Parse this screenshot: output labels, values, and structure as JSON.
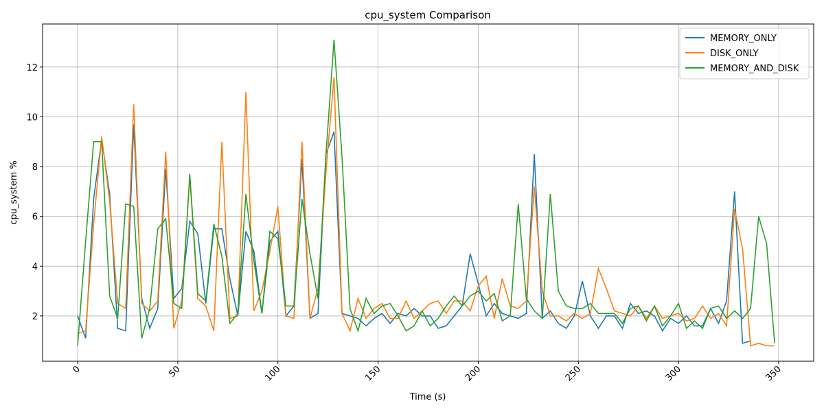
{
  "chart_data": {
    "type": "line",
    "title": "cpu_system Comparison",
    "x_label": "Time (s)",
    "y_label": "cpu_system %",
    "x": [
      0,
      4,
      8,
      12,
      16,
      20,
      24,
      28,
      32,
      36,
      40,
      44,
      48,
      52,
      56,
      60,
      64,
      68,
      72,
      76,
      80,
      84,
      88,
      92,
      96,
      100,
      104,
      108,
      112,
      116,
      120,
      124,
      128,
      132,
      136,
      140,
      144,
      148,
      152,
      156,
      160,
      164,
      168,
      172,
      176,
      180,
      184,
      188,
      192,
      196,
      200,
      204,
      208,
      212,
      216,
      220,
      224,
      228,
      232,
      236,
      240,
      244,
      248,
      252,
      256,
      260,
      264,
      268,
      272,
      276,
      280,
      284,
      288,
      292,
      296,
      300,
      304,
      308,
      312,
      316,
      320,
      324,
      328,
      332,
      336,
      340,
      344,
      348
    ],
    "series": [
      {
        "name": "MEMORY_ONLY",
        "color": "#1f77b4",
        "values": [
          2.0,
          1.1,
          6.7,
          9.1,
          6.9,
          1.5,
          1.4,
          9.7,
          2.7,
          1.5,
          2.3,
          7.9,
          2.7,
          3.1,
          5.8,
          5.3,
          2.5,
          5.5,
          5.5,
          3.5,
          2.0,
          5.4,
          4.6,
          2.1,
          5.0,
          5.4,
          2.0,
          2.4,
          8.3,
          1.9,
          2.1,
          8.5,
          9.4,
          2.1,
          2.0,
          1.9,
          1.6,
          1.9,
          2.1,
          1.7,
          2.1,
          2.0,
          2.3,
          2.0,
          2.0,
          1.5,
          1.6,
          2.0,
          2.4,
          4.5,
          3.3,
          2.0,
          2.5,
          2.1,
          2.0,
          1.9,
          2.1,
          8.5,
          1.9,
          2.2,
          1.7,
          1.5,
          2.0,
          3.4,
          2.0,
          1.5,
          2.0,
          2.0,
          1.5,
          2.5,
          2.1,
          2.2,
          2.0,
          1.4,
          1.9,
          1.7,
          2.0,
          1.6,
          1.6,
          2.3,
          1.7,
          2.6,
          7.0,
          0.9,
          1.0,
          null,
          null,
          null
        ]
      },
      {
        "name": "DISK_ONLY",
        "color": "#ff7f0e",
        "values": [
          1.3,
          1.4,
          5.7,
          9.2,
          6.6,
          2.5,
          2.3,
          10.5,
          2.5,
          2.2,
          2.6,
          8.6,
          1.5,
          2.6,
          7.6,
          2.7,
          2.4,
          1.4,
          9.0,
          1.9,
          2.0,
          11.0,
          2.2,
          3.0,
          4.6,
          6.4,
          2.0,
          1.9,
          9.0,
          1.9,
          3.1,
          7.8,
          11.6,
          2.1,
          1.4,
          2.7,
          1.9,
          2.3,
          2.5,
          1.9,
          1.9,
          2.6,
          1.9,
          2.2,
          2.5,
          2.6,
          2.1,
          2.6,
          2.6,
          2.2,
          3.2,
          3.6,
          1.9,
          3.5,
          2.4,
          2.3,
          2.6,
          7.2,
          3.0,
          2.0,
          2.0,
          1.8,
          2.1,
          1.9,
          2.1,
          3.9,
          3.1,
          2.2,
          2.1,
          2.0,
          2.4,
          1.9,
          2.4,
          1.9,
          2.0,
          2.1,
          1.8,
          1.9,
          2.4,
          1.9,
          2.1,
          1.6,
          6.3,
          4.7,
          0.8,
          0.9,
          0.8,
          0.8
        ]
      },
      {
        "name": "MEMORY_AND_DISK",
        "color": "#2ca02c",
        "values": [
          0.8,
          5.0,
          9.0,
          9.0,
          2.8,
          1.9,
          6.5,
          6.4,
          1.1,
          2.3,
          5.5,
          5.9,
          2.5,
          2.3,
          7.7,
          2.9,
          2.6,
          5.7,
          4.4,
          1.7,
          2.1,
          6.9,
          4.2,
          2.1,
          5.4,
          5.1,
          2.4,
          2.4,
          6.7,
          4.5,
          2.7,
          8.5,
          13.1,
          8.4,
          2.3,
          1.4,
          2.7,
          2.1,
          2.4,
          2.5,
          2.0,
          1.4,
          1.6,
          2.2,
          1.6,
          1.9,
          2.4,
          2.8,
          2.4,
          2.8,
          3.0,
          2.6,
          2.9,
          1.8,
          2.0,
          6.5,
          2.7,
          2.2,
          1.9,
          6.9,
          3.0,
          2.4,
          2.3,
          2.3,
          2.5,
          2.1,
          2.1,
          2.1,
          1.7,
          2.3,
          2.4,
          1.8,
          2.4,
          1.6,
          2.0,
          2.5,
          1.5,
          1.8,
          1.5,
          2.3,
          2.4,
          1.9,
          2.2,
          1.9,
          2.3,
          6.0,
          4.9,
          0.9
        ]
      }
    ],
    "xlim": [
      -17.5,
      367.5
    ],
    "ylim": [
      0.18,
      13.73
    ],
    "xticks": [
      0,
      50,
      100,
      150,
      200,
      250,
      300,
      350
    ],
    "yticks": [
      2,
      4,
      6,
      8,
      10,
      12
    ],
    "grid": true,
    "legend": "upper right"
  }
}
